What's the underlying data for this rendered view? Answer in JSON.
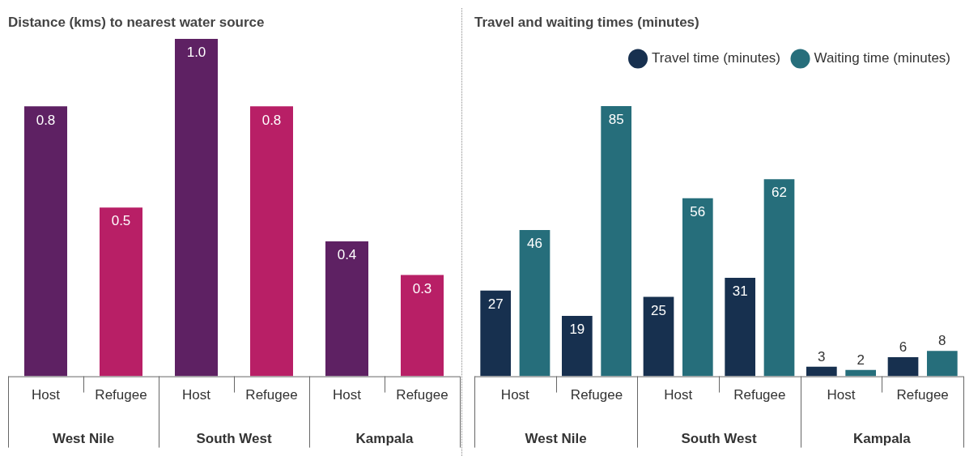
{
  "chart_data": [
    {
      "type": "bar",
      "title": "Distance (kms) to nearest water source",
      "categories": [
        "Host",
        "Refugee",
        "Host",
        "Refugee",
        "Host",
        "Refugee"
      ],
      "values": [
        0.8,
        0.5,
        1.0,
        0.8,
        0.4,
        0.3
      ],
      "value_labels": [
        "0.8",
        "0.5",
        "1.0",
        "0.8",
        "0.4",
        "0.3"
      ],
      "colors": [
        "#5e2163",
        "#b81f66",
        "#5e2163",
        "#b81f66",
        "#5e2163",
        "#b81f66"
      ],
      "grid": false,
      "legend": false,
      "annotations": [
        "West Nile",
        "South West",
        "Kampala"
      ]
    },
    {
      "type": "bar",
      "title": "Travel and waiting times (minutes)",
      "categories": [
        "Host",
        "Refugee",
        "Host",
        "Refugee",
        "Host",
        "Refugee"
      ],
      "series": [
        {
          "name": "Travel time (minutes)",
          "color": "#17304f",
          "values": [
            27,
            19,
            25,
            31,
            3,
            6
          ]
        },
        {
          "name": "Waiting time (minutes)",
          "color": "#266e7b",
          "values": [
            46,
            85,
            56,
            62,
            2,
            8
          ]
        }
      ],
      "data_labels": true,
      "grid": false,
      "legend": "top right",
      "annotations": [
        "West Nile",
        "South West",
        "Kampala"
      ]
    }
  ]
}
